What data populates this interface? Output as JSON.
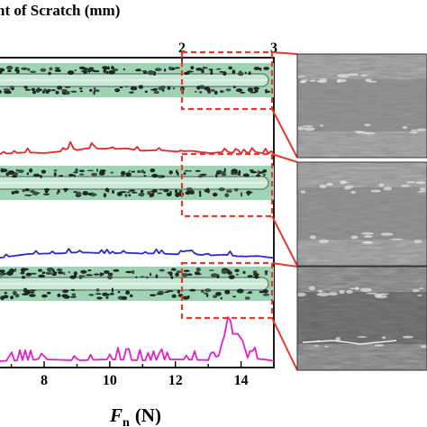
{
  "chart_data": {
    "type": "line",
    "title": "ht of Scratch (mm)",
    "top_axis": {
      "label": "ht of Scratch (mm)",
      "ticks": [
        "2",
        "3"
      ],
      "tick_values": [
        2,
        3
      ],
      "range": [
        0,
        3
      ]
    },
    "bottom_axis": {
      "label_symbol": "F",
      "label_subscript": "n",
      "label_unit": "(N)",
      "ticks": [
        "8",
        "10",
        "12",
        "14"
      ],
      "tick_values": [
        8,
        10,
        12,
        14
      ],
      "range": [
        6.6,
        15
      ]
    },
    "series": [
      {
        "color": "#e8262a",
        "x": [
          6.6,
          7.5,
          8.0,
          8.5,
          8.8,
          9.0,
          9.3,
          9.6,
          10.0,
          10.5,
          11.0,
          11.5,
          12.0,
          12.5,
          13.0,
          13.5,
          14.0,
          14.5,
          15.0
        ],
        "y": [
          0.05,
          0.06,
          0.1,
          0.12,
          0.45,
          0.2,
          0.4,
          0.3,
          0.35,
          0.3,
          0.25,
          0.2,
          0.2,
          0.15,
          0.1,
          0.08,
          0.06,
          0.05,
          0.05
        ]
      },
      {
        "color": "#2a2ac8",
        "x": [
          6.6,
          7.5,
          8.0,
          8.5,
          9.0,
          9.5,
          10.0,
          10.5,
          11.0,
          11.5,
          12.0,
          12.5,
          13.0,
          13.5,
          14.0,
          14.5,
          15.0
        ],
        "y": [
          0.1,
          0.3,
          0.45,
          0.35,
          0.55,
          0.4,
          0.45,
          0.4,
          0.45,
          0.35,
          0.4,
          0.3,
          0.3,
          0.25,
          0.2,
          0.15,
          0.1
        ]
      },
      {
        "color": "#e020c8",
        "x": [
          6.6,
          8.0,
          9.0,
          10.0,
          11.0,
          12.0,
          13.0,
          13.4,
          13.6,
          13.75,
          13.9,
          14.05,
          14.2,
          14.5,
          15.0
        ],
        "y": [
          0.05,
          0.06,
          0.07,
          0.06,
          0.07,
          0.06,
          0.08,
          0.2,
          1.0,
          0.8,
          0.85,
          0.6,
          0.15,
          0.08,
          0.06
        ]
      }
    ],
    "insets": {
      "count": 3,
      "magnified_region_x": [
        12.2,
        15
      ]
    }
  },
  "colors": {
    "strip": "#9fd3b4",
    "groove": "#c9e8d4",
    "highlight": "#e33b2e",
    "sem_base": "#8e8e8e"
  }
}
